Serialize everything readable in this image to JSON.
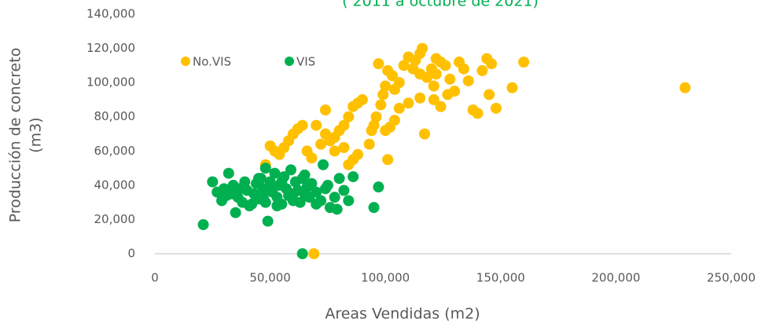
{
  "chart_data": {
    "type": "scatter",
    "subtitle": "( 2011 a octubre de 2021)",
    "xlabel": "Areas Vendidas (m2)",
    "ylabel": [
      "Producción de concreto",
      "(m3)"
    ],
    "xlim": [
      0,
      250000
    ],
    "xticks": [
      0,
      {
        "value": 50000,
        "label": "50,000"
      },
      {
        "value": 100000,
        "label": "100,000"
      },
      {
        "value": 150000,
        "label": "150,000"
      },
      {
        "value": 200000,
        "label": "200,000"
      },
      {
        "value": 250000,
        "label": "250,000"
      }
    ],
    "ylim": [
      0,
      140000
    ],
    "yticks": [
      0,
      {
        "value": 20000,
        "label": "20,000"
      },
      {
        "value": 40000,
        "label": "40,000"
      },
      {
        "value": 60000,
        "label": "60,000"
      },
      {
        "value": 80000,
        "label": "80,000"
      },
      {
        "value": 100000,
        "label": "100,000"
      },
      {
        "value": 120000,
        "label": "120,000"
      },
      {
        "value": 140000,
        "label": "140,000"
      }
    ],
    "legend": "top-left",
    "series": [
      {
        "name": "No.VIS",
        "color": "#FFC000",
        "x": [
          230000,
          160000,
          155000,
          148000,
          146000,
          144000,
          145000,
          140000,
          142000,
          138000,
          136000,
          134000,
          132000,
          128000,
          127000,
          126000,
          124000,
          122000,
          121000,
          120000,
          118000,
          116000,
          115000,
          113000,
          112000,
          110000,
          108000,
          106000,
          104000,
          103000,
          101000,
          100000,
          99000,
          98000,
          97000,
          96000,
          95000,
          94000,
          93000,
          101000,
          117000,
          121000,
          124000,
          130000,
          115000,
          110000,
          106000,
          104000,
          102000,
          100000,
          90000,
          88000,
          86000,
          84000,
          82000,
          80000,
          78000,
          76000,
          74000,
          72000,
          70000,
          68000,
          66000,
          64000,
          62000,
          60000,
          58000,
          56000,
          54000,
          52000,
          50000,
          48000,
          74000,
          69000,
          84000,
          86000,
          88000,
          78000,
          82000,
          115000,
          122000
        ],
        "y": [
          97000,
          112000,
          97000,
          85000,
          111000,
          114000,
          93000,
          82000,
          107000,
          84000,
          101000,
          108000,
          112000,
          102000,
          93000,
          110000,
          112000,
          105000,
          98000,
          108000,
          103000,
          120000,
          117000,
          113000,
          108000,
          115000,
          110000,
          100000,
          96000,
          104000,
          107000,
          98000,
          93000,
          87000,
          111000,
          80000,
          75000,
          72000,
          64000,
          55000,
          70000,
          90000,
          86000,
          95000,
          91000,
          88000,
          85000,
          78000,
          74000,
          72000,
          90000,
          88000,
          86000,
          80000,
          75000,
          72000,
          68000,
          66000,
          70000,
          64000,
          75000,
          56000,
          60000,
          75000,
          73000,
          70000,
          66000,
          62000,
          58000,
          60000,
          63000,
          52000,
          84000,
          0,
          52000,
          55000,
          58000,
          60000,
          62000,
          105000,
          114000
        ]
      },
      {
        "name": "VIS",
        "color": "#00B050",
        "x": [
          21000,
          64000,
          49000,
          95000,
          97000,
          73000,
          32000,
          35000,
          25000,
          27000,
          29000,
          30000,
          33000,
          34000,
          36000,
          38000,
          39000,
          40000,
          42000,
          43000,
          44000,
          45000,
          46000,
          47000,
          48000,
          48000,
          50000,
          51000,
          52000,
          53000,
          54000,
          55000,
          56000,
          57000,
          58000,
          59000,
          60000,
          61000,
          62000,
          63000,
          64000,
          65000,
          66000,
          67000,
          68000,
          70000,
          72000,
          74000,
          76000,
          78000,
          80000,
          82000,
          84000,
          86000,
          41000,
          37000,
          31000,
          45000,
          50000,
          55000,
          60000,
          65000,
          70000,
          75000,
          79000,
          47000,
          53000
        ],
        "y": [
          17000,
          0,
          19000,
          27000,
          39000,
          52000,
          47000,
          24000,
          42000,
          36000,
          31000,
          38000,
          35000,
          40000,
          33000,
          30000,
          42000,
          37000,
          29000,
          35000,
          41000,
          32000,
          44000,
          38000,
          50000,
          30000,
          42000,
          36000,
          47000,
          33000,
          40000,
          29000,
          45000,
          38000,
          34000,
          49000,
          31000,
          42000,
          37000,
          30000,
          44000,
          35000,
          39000,
          33000,
          41000,
          36000,
          31000,
          38000,
          27000,
          33000,
          44000,
          37000,
          31000,
          45000,
          28000,
          38000,
          34000,
          44000,
          38000,
          42000,
          35000,
          46000,
          29000,
          40000,
          26000,
          33000,
          28000
        ]
      }
    ]
  }
}
